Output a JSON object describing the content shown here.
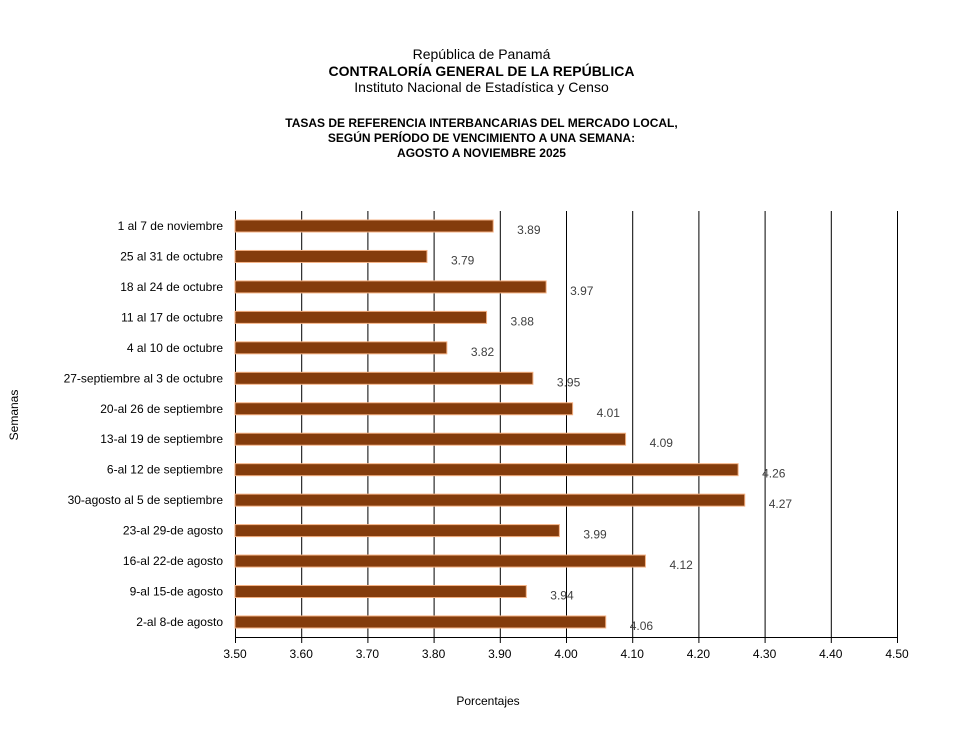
{
  "header": {
    "line1": "República de Panamá",
    "line2": "CONTRALORÍA GENERAL DE LA REPÚBLICA",
    "line3": "Instituto Nacional de Estadística y Censo"
  },
  "chart_data": {
    "type": "bar",
    "orientation": "horizontal",
    "title": [
      "TASAS DE REFERENCIA INTERBANCARIAS DEL MERCADO LOCAL,",
      "SEGÚN PERÍODO DE VENCIMIENTO A UNA SEMANA:",
      "AGOSTO A NOVIEMBRE 2025"
    ],
    "xlabel": "Porcentajes",
    "ylabel": "Semanas",
    "xlim": [
      3.5,
      4.5
    ],
    "xticks": [
      "3.50",
      "3.60",
      "3.70",
      "3.80",
      "3.90",
      "4.00",
      "4.10",
      "4.20",
      "4.30",
      "4.40",
      "4.50"
    ],
    "grid": true,
    "bar_color": "#843C0C",
    "bar_edge_color": "#F4B183",
    "categories": [
      "1 al 7 de noviembre",
      "25 al 31 de octubre",
      "18 al 24 de octubre",
      "11 al 17 de octubre",
      "4 al 10 de octubre",
      "27-septiembre al 3 de octubre",
      "20-al 26 de septiembre",
      "13-al 19 de septiembre",
      "6-al 12 de septiembre",
      "30-agosto al 5 de septiembre",
      "23-al 29-de agosto",
      "16-al 22-de agosto",
      "9-al 15-de agosto",
      "2-al 8-de agosto"
    ],
    "values": [
      3.89,
      3.79,
      3.97,
      3.88,
      3.82,
      3.95,
      4.01,
      4.09,
      4.26,
      4.27,
      3.99,
      4.12,
      3.94,
      4.06
    ],
    "labels": [
      "3.89",
      "3.79",
      "3.97",
      "3.88",
      "3.82",
      "3.95",
      "4.01",
      "4.09",
      "4.26",
      "4.27",
      "3.99",
      "4.12",
      "3.94",
      "4.06"
    ]
  }
}
